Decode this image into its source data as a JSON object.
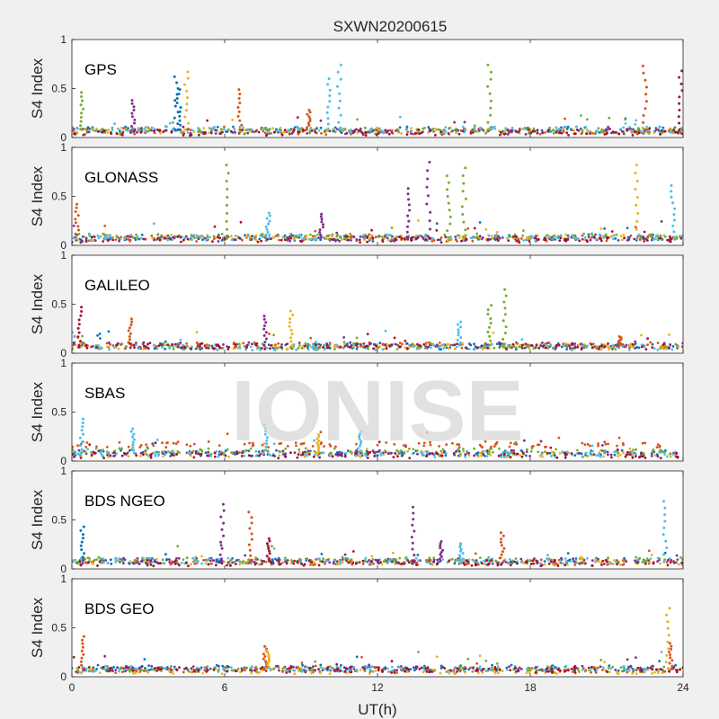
{
  "chart_data": {
    "type": "scatter",
    "title": "SXWN20200615",
    "xlabel": "UT(h)",
    "ylabel": "S4 Index",
    "xlim": [
      0,
      24
    ],
    "ylim": [
      0,
      1
    ],
    "x_ticks": [
      "0",
      "6",
      "12",
      "18",
      "24"
    ],
    "y_ticks": [
      "0",
      "0.5",
      "1"
    ],
    "watermark": "IONISE",
    "series_colors": [
      "#0072BD",
      "#D95319",
      "#EDB120",
      "#7E2F8E",
      "#77AC30",
      "#4DBEEE",
      "#A2142F"
    ],
    "panels": [
      {
        "name": "GPS",
        "baseline": [
          0.08,
          0.06,
          0.07,
          0.06,
          0.07,
          0.08,
          0.05
        ],
        "spikes": [
          {
            "x": 0.4,
            "y": 0.46,
            "c": 4
          },
          {
            "x": 2.4,
            "y": 0.38,
            "c": 3
          },
          {
            "x": 4.1,
            "y": 0.62,
            "c": 0
          },
          {
            "x": 4.2,
            "y": 0.49,
            "c": 0
          },
          {
            "x": 4.5,
            "y": 0.67,
            "c": 2
          },
          {
            "x": 6.6,
            "y": 0.49,
            "c": 1
          },
          {
            "x": 9.3,
            "y": 0.28,
            "c": 1
          },
          {
            "x": 10.1,
            "y": 0.6,
            "c": 5
          },
          {
            "x": 10.5,
            "y": 0.74,
            "c": 5
          },
          {
            "x": 16.4,
            "y": 0.74,
            "c": 4
          },
          {
            "x": 22.5,
            "y": 0.73,
            "c": 1
          },
          {
            "x": 23.9,
            "y": 0.68,
            "c": 6
          }
        ]
      },
      {
        "name": "GLONASS",
        "baseline": [
          0.08,
          0.07,
          0.08,
          0.07,
          0.09,
          0.08,
          0.06
        ],
        "spikes": [
          {
            "x": 0.2,
            "y": 0.42,
            "c": 1
          },
          {
            "x": 6.1,
            "y": 0.82,
            "c": 4
          },
          {
            "x": 7.7,
            "y": 0.33,
            "c": 5
          },
          {
            "x": 9.8,
            "y": 0.32,
            "c": 3
          },
          {
            "x": 13.2,
            "y": 0.58,
            "c": 3
          },
          {
            "x": 14.0,
            "y": 0.85,
            "c": 3
          },
          {
            "x": 14.8,
            "y": 0.71,
            "c": 4
          },
          {
            "x": 15.4,
            "y": 0.79,
            "c": 4
          },
          {
            "x": 22.2,
            "y": 0.82,
            "c": 2
          },
          {
            "x": 23.6,
            "y": 0.61,
            "c": 5
          }
        ]
      },
      {
        "name": "GALILEO",
        "baseline": [
          0.07,
          0.08,
          0.07,
          0.08,
          0.07,
          0.06,
          0.07
        ],
        "spikes": [
          {
            "x": 0.3,
            "y": 0.47,
            "c": 6
          },
          {
            "x": 2.3,
            "y": 0.35,
            "c": 1
          },
          {
            "x": 7.6,
            "y": 0.38,
            "c": 3
          },
          {
            "x": 8.6,
            "y": 0.43,
            "c": 2
          },
          {
            "x": 15.2,
            "y": 0.32,
            "c": 5
          },
          {
            "x": 16.4,
            "y": 0.49,
            "c": 4
          },
          {
            "x": 17.0,
            "y": 0.65,
            "c": 4
          },
          {
            "x": 21.5,
            "y": 0.17,
            "c": 1
          }
        ]
      },
      {
        "name": "SBAS",
        "baseline": [
          0.08,
          0.17,
          0.07,
          0.08,
          0.1,
          0.07,
          0.06
        ],
        "spikes": [
          {
            "x": 0.4,
            "y": 0.43,
            "c": 5
          },
          {
            "x": 2.4,
            "y": 0.33,
            "c": 5
          },
          {
            "x": 7.6,
            "y": 0.37,
            "c": 5
          },
          {
            "x": 9.7,
            "y": 0.27,
            "c": 2
          },
          {
            "x": 11.3,
            "y": 0.3,
            "c": 5
          }
        ]
      },
      {
        "name": "BDS NGEO",
        "baseline": [
          0.08,
          0.07,
          0.07,
          0.08,
          0.09,
          0.08,
          0.06
        ],
        "spikes": [
          {
            "x": 0.4,
            "y": 0.43,
            "c": 0
          },
          {
            "x": 5.9,
            "y": 0.66,
            "c": 3
          },
          {
            "x": 7.0,
            "y": 0.58,
            "c": 1
          },
          {
            "x": 7.7,
            "y": 0.31,
            "c": 6
          },
          {
            "x": 13.4,
            "y": 0.63,
            "c": 3
          },
          {
            "x": 14.5,
            "y": 0.28,
            "c": 3
          },
          {
            "x": 15.3,
            "y": 0.26,
            "c": 5
          },
          {
            "x": 16.9,
            "y": 0.37,
            "c": 1
          },
          {
            "x": 23.3,
            "y": 0.69,
            "c": 5
          }
        ]
      },
      {
        "name": "BDS GEO",
        "baseline": [
          0.09,
          0.07,
          0.06,
          0.08,
          0.08,
          0.08,
          0.07
        ],
        "spikes": [
          {
            "x": 0.4,
            "y": 0.41,
            "c": 1
          },
          {
            "x": 7.6,
            "y": 0.31,
            "c": 1
          },
          {
            "x": 7.7,
            "y": 0.27,
            "c": 2
          },
          {
            "x": 23.4,
            "y": 0.7,
            "c": 2
          },
          {
            "x": 23.5,
            "y": 0.34,
            "c": 1
          }
        ]
      }
    ]
  }
}
